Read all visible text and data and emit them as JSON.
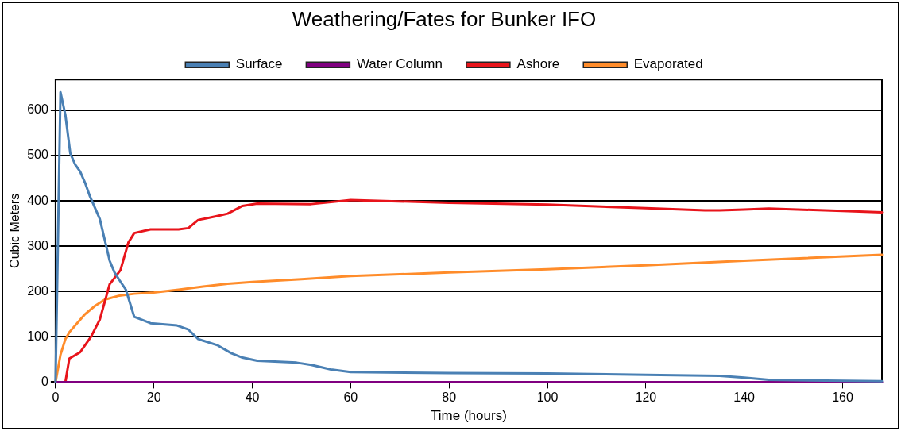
{
  "chart_data": {
    "type": "line",
    "title": "Weathering/Fates for Bunker IFO",
    "xlabel": "Time (hours)",
    "ylabel": "Cubic Meters",
    "xlim": [
      0,
      168
    ],
    "xticks": [
      0,
      20,
      40,
      60,
      80,
      100,
      120,
      140,
      160
    ],
    "ylim": [
      0,
      668
    ],
    "yticks": [
      0,
      100,
      200,
      300,
      400,
      500,
      600
    ],
    "grid": "y",
    "legend": "top",
    "marker": "none",
    "line_style": "solid",
    "series": [
      {
        "name": "Surface",
        "color": "#4a80b4",
        "x": [
          0,
          1,
          2,
          3,
          4,
          5,
          6,
          7,
          8,
          9,
          11,
          12,
          13,
          14.3,
          16,
          19.3,
          24.7,
          27,
          29,
          33,
          35.7,
          38,
          41,
          49,
          52,
          56,
          60,
          80,
          100,
          120,
          135,
          140,
          145,
          168
        ],
        "values": [
          0,
          640,
          590,
          505,
          480,
          465,
          440,
          410,
          385,
          360,
          268,
          242,
          225,
          204,
          144,
          130,
          125,
          116,
          95,
          81,
          64,
          54,
          47,
          43,
          38,
          28,
          22,
          20,
          19,
          16,
          14,
          10,
          5,
          2
        ]
      },
      {
        "name": "Water Column",
        "color": "#800080",
        "x": [
          0,
          168
        ],
        "values": [
          0,
          0
        ]
      },
      {
        "name": "Ashore",
        "color": "#e8141b",
        "x": [
          0,
          2,
          2.8,
          5,
          7.2,
          9,
          11,
          13.2,
          14.8,
          16,
          19.3,
          25,
          27,
          29,
          33,
          35,
          38,
          41,
          52,
          60,
          80,
          100,
          120,
          132,
          135,
          140,
          145,
          160,
          168
        ],
        "values": [
          0,
          0,
          52,
          66,
          100,
          138,
          216,
          247,
          308,
          329,
          337,
          337,
          340,
          358,
          367,
          372,
          389,
          394,
          393,
          402,
          396,
          392,
          384,
          379,
          379,
          381,
          383,
          378,
          375
        ]
      },
      {
        "name": "Evaporated",
        "color": "#ff8c2a",
        "x": [
          0,
          1,
          2,
          2.8,
          4,
          6,
          8,
          10,
          13,
          16,
          20,
          25,
          30,
          35,
          40,
          50,
          60,
          80,
          100,
          120,
          140,
          168
        ],
        "values": [
          0,
          60,
          95,
          110,
          125,
          150,
          168,
          182,
          191,
          195,
          198,
          204,
          211,
          217,
          221,
          227,
          234,
          242,
          249,
          258,
          268,
          281
        ]
      }
    ]
  }
}
